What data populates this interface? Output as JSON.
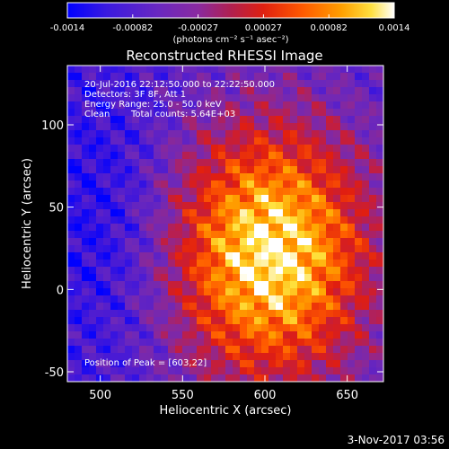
{
  "chart_data": {
    "type": "heatmap",
    "title": "Reconstructed RHESSI Image",
    "xlabel": "Heliocentric X (arcsec)",
    "ylabel": "Heliocentric Y (arcsec)",
    "xlim": [
      480,
      672
    ],
    "ylim": [
      -56,
      136
    ],
    "x_ticks": [
      500,
      550,
      600,
      650
    ],
    "y_ticks": [
      -50,
      0,
      50,
      100
    ],
    "colorbar": {
      "range": [
        -0.0014,
        0.0014
      ],
      "ticks": [
        "-0.0014",
        "-0.00082",
        "-0.00027",
        "0.00027",
        "0.00082",
        "0.0014"
      ],
      "unit_label": "(photons cm⁻² s⁻¹ asec⁻²)",
      "colors": [
        "#0000ff",
        "#5b1fd0",
        "#7f2fb0",
        "#c02050",
        "#ff3000",
        "#ff8a00",
        "#ffd000",
        "#ffffff"
      ]
    },
    "annotations": {
      "time_range": "20-Jul-2016 22:12:50.000 to 22:22:50.000",
      "detectors": "Detectors: 3F 8F, Att 1",
      "energy": "Energy Range: 25.0 - 50.0 keV",
      "method": "Clean",
      "total_counts": "Total counts: 5.64E+03",
      "peak": "Position of Peak = [603,22]"
    },
    "peak": {
      "x": 603,
      "y": 22
    },
    "grid": false
  },
  "footer": {
    "timestamp": "3-Nov-2017 03:56"
  }
}
